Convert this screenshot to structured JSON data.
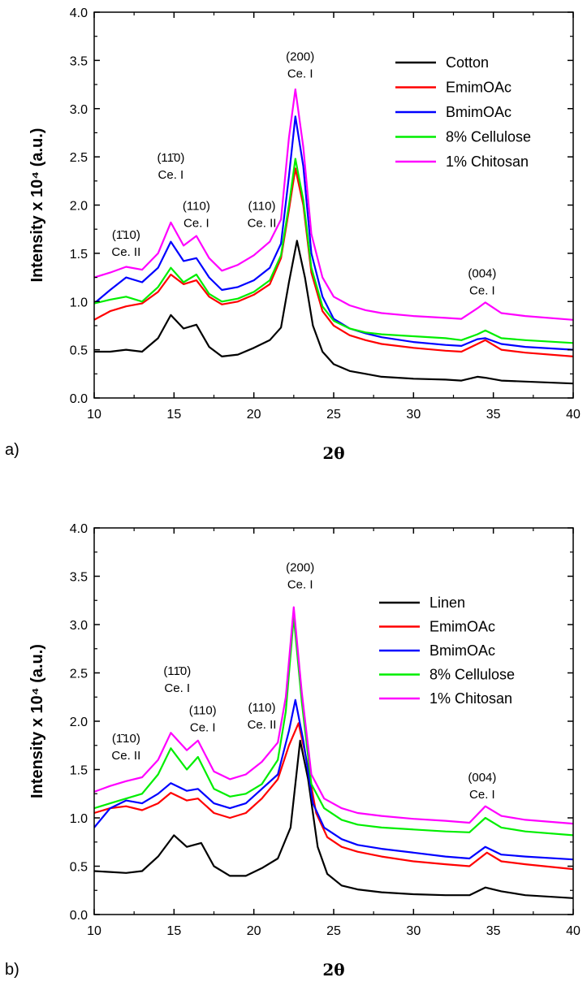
{
  "chart_data": [
    {
      "type": "line",
      "panel_label": "a)",
      "xlabel": "2θ",
      "ylabel": "Intensity x 10⁴ (a.u.)",
      "xlim": [
        10,
        40
      ],
      "ylim": [
        0.0,
        4.0
      ],
      "xticks": [
        "10",
        "15",
        "20",
        "25",
        "30",
        "35",
        "40"
      ],
      "yticks": [
        "0.0",
        "0.5",
        "1.0",
        "1.5",
        "2.0",
        "2.5",
        "3.0",
        "3.5",
        "4.0"
      ],
      "legend_position": "top-right",
      "series": [
        {
          "name": "Cotton",
          "color": "#000000",
          "x": [
            10,
            11,
            12,
            13,
            14,
            14.8,
            15.6,
            16.4,
            17.2,
            18,
            19,
            20,
            21,
            21.7,
            22.2,
            22.7,
            23.2,
            23.7,
            24.3,
            25,
            26,
            27,
            28,
            30,
            32,
            33,
            34,
            34.5,
            35.5,
            37,
            40
          ],
          "y": [
            0.48,
            0.48,
            0.5,
            0.48,
            0.62,
            0.86,
            0.72,
            0.76,
            0.53,
            0.43,
            0.45,
            0.52,
            0.6,
            0.73,
            1.2,
            1.63,
            1.25,
            0.75,
            0.48,
            0.35,
            0.28,
            0.25,
            0.22,
            0.2,
            0.19,
            0.18,
            0.22,
            0.21,
            0.18,
            0.17,
            0.15
          ]
        },
        {
          "name": "EmimOAc",
          "color": "#ff0000",
          "x": [
            10,
            11,
            12,
            13,
            14,
            14.8,
            15.6,
            16.4,
            17.2,
            18,
            19,
            20,
            21,
            21.7,
            22.2,
            22.6,
            23.1,
            23.6,
            24.3,
            25,
            26,
            27,
            28,
            30,
            32,
            33,
            34,
            34.5,
            35.5,
            37,
            40
          ],
          "y": [
            0.81,
            0.9,
            0.95,
            0.98,
            1.1,
            1.28,
            1.18,
            1.22,
            1.05,
            0.97,
            1.0,
            1.07,
            1.18,
            1.45,
            1.95,
            2.38,
            2.0,
            1.3,
            0.9,
            0.75,
            0.65,
            0.6,
            0.56,
            0.52,
            0.49,
            0.48,
            0.56,
            0.6,
            0.5,
            0.47,
            0.43
          ]
        },
        {
          "name": "BmimOAc",
          "color": "#0000ff",
          "x": [
            10,
            11,
            12,
            13,
            14,
            14.8,
            15.6,
            16.4,
            17.2,
            18,
            19,
            20,
            21,
            21.7,
            22.2,
            22.6,
            23.1,
            23.6,
            24.3,
            25,
            26,
            27,
            28,
            30,
            32,
            33,
            34,
            34.5,
            35.5,
            37,
            40
          ],
          "y": [
            0.98,
            1.12,
            1.25,
            1.2,
            1.35,
            1.62,
            1.42,
            1.45,
            1.25,
            1.12,
            1.15,
            1.22,
            1.35,
            1.6,
            2.3,
            2.92,
            2.4,
            1.5,
            1.05,
            0.82,
            0.72,
            0.67,
            0.63,
            0.58,
            0.55,
            0.54,
            0.61,
            0.62,
            0.56,
            0.53,
            0.5
          ]
        },
        {
          "name": "8% Cellulose",
          "color": "#00ee00",
          "x": [
            10,
            11,
            12,
            13,
            14,
            14.8,
            15.6,
            16.4,
            17.2,
            18,
            19,
            20,
            21,
            21.7,
            22.2,
            22.6,
            23.1,
            23.6,
            24.3,
            25,
            26,
            27,
            28,
            30,
            32,
            33,
            34,
            34.5,
            35.5,
            37,
            40
          ],
          "y": [
            0.98,
            1.02,
            1.05,
            1.0,
            1.15,
            1.35,
            1.2,
            1.28,
            1.08,
            1.0,
            1.03,
            1.1,
            1.22,
            1.48,
            2.0,
            2.48,
            2.05,
            1.35,
            0.95,
            0.8,
            0.72,
            0.68,
            0.66,
            0.64,
            0.62,
            0.6,
            0.66,
            0.7,
            0.62,
            0.6,
            0.57
          ]
        },
        {
          "name": "1% Chitosan",
          "color": "#ff00ff",
          "x": [
            10,
            11,
            12,
            13,
            14,
            14.8,
            15.6,
            16.4,
            17.2,
            18,
            19,
            20,
            21,
            21.7,
            22.2,
            22.6,
            23.1,
            23.6,
            24.3,
            25,
            26,
            27,
            28,
            30,
            32,
            33,
            34,
            34.5,
            35.5,
            37,
            40
          ],
          "y": [
            1.25,
            1.3,
            1.36,
            1.33,
            1.5,
            1.82,
            1.58,
            1.68,
            1.45,
            1.32,
            1.38,
            1.48,
            1.62,
            1.85,
            2.7,
            3.2,
            2.6,
            1.7,
            1.25,
            1.05,
            0.96,
            0.91,
            0.88,
            0.85,
            0.83,
            0.82,
            0.93,
            0.99,
            0.88,
            0.85,
            0.81
          ]
        }
      ],
      "annotations": [
        {
          "label": "(1̄10)",
          "phase": "Ce. II",
          "x": 12.0,
          "y": 1.65
        },
        {
          "label": "(11̄0)",
          "phase": "Ce. I",
          "x": 14.8,
          "y": 2.45
        },
        {
          "label": "(110)",
          "phase": "Ce. I",
          "x": 16.4,
          "y": 1.95
        },
        {
          "label": "(110)",
          "phase": "Ce. II",
          "x": 20.5,
          "y": 1.95
        },
        {
          "label": "(200)",
          "phase": "Ce. I",
          "x": 22.9,
          "y": 3.5
        },
        {
          "label": "(004)",
          "phase": "Ce. I",
          "x": 34.3,
          "y": 1.25
        }
      ]
    },
    {
      "type": "line",
      "panel_label": "b)",
      "xlabel": "2θ",
      "ylabel": "Intensity x 10⁴ (a.u.)",
      "xlim": [
        10,
        40
      ],
      "ylim": [
        0.0,
        4.0
      ],
      "xticks": [
        "10",
        "15",
        "20",
        "25",
        "30",
        "35",
        "40"
      ],
      "yticks": [
        "0.0",
        "0.5",
        "1.0",
        "1.5",
        "2.0",
        "2.5",
        "3.0",
        "3.5",
        "4.0"
      ],
      "legend_position": "top-right",
      "series": [
        {
          "name": "Linen",
          "color": "#000000",
          "x": [
            10,
            11,
            12,
            13,
            14,
            15,
            15.8,
            16.7,
            17.5,
            18.5,
            19.5,
            20.5,
            21.5,
            22.3,
            22.9,
            23.4,
            24,
            24.6,
            25.5,
            26.5,
            28,
            30,
            32,
            33.5,
            34.5,
            35.5,
            37,
            40
          ],
          "y": [
            0.45,
            0.44,
            0.43,
            0.45,
            0.6,
            0.82,
            0.7,
            0.74,
            0.5,
            0.4,
            0.4,
            0.48,
            0.58,
            0.9,
            1.8,
            1.4,
            0.7,
            0.42,
            0.3,
            0.26,
            0.23,
            0.21,
            0.2,
            0.2,
            0.28,
            0.24,
            0.2,
            0.17
          ]
        },
        {
          "name": "EmimOAc",
          "color": "#ff0000",
          "x": [
            10,
            11,
            12,
            13,
            14,
            14.8,
            15.8,
            16.5,
            17.5,
            18.5,
            19.5,
            20.5,
            21.5,
            22.2,
            22.8,
            23.3,
            23.9,
            24.6,
            25.5,
            26.5,
            28,
            30,
            32,
            33.5,
            34.6,
            35.5,
            37,
            40
          ],
          "y": [
            1.05,
            1.1,
            1.12,
            1.08,
            1.15,
            1.26,
            1.18,
            1.2,
            1.05,
            1.0,
            1.05,
            1.2,
            1.4,
            1.75,
            1.98,
            1.6,
            1.05,
            0.8,
            0.7,
            0.65,
            0.6,
            0.55,
            0.52,
            0.5,
            0.64,
            0.55,
            0.52,
            0.47
          ]
        },
        {
          "name": "BmimOAc",
          "color": "#0000ff",
          "x": [
            10,
            11,
            12,
            13,
            14,
            14.8,
            15.8,
            16.5,
            17.5,
            18.5,
            19.5,
            20.5,
            21.5,
            22.2,
            22.6,
            23.1,
            23.7,
            24.4,
            25.5,
            26.5,
            28,
            30,
            32,
            33.5,
            34.5,
            35.5,
            37,
            40
          ],
          "y": [
            0.9,
            1.1,
            1.18,
            1.15,
            1.25,
            1.36,
            1.28,
            1.3,
            1.15,
            1.1,
            1.15,
            1.3,
            1.45,
            1.9,
            2.22,
            1.8,
            1.15,
            0.9,
            0.78,
            0.72,
            0.68,
            0.64,
            0.6,
            0.58,
            0.7,
            0.62,
            0.6,
            0.57
          ]
        },
        {
          "name": "8% Cellulose",
          "color": "#00ee00",
          "x": [
            10,
            11,
            12,
            13,
            14,
            14.8,
            15.8,
            16.5,
            17.5,
            18.5,
            19.5,
            20.5,
            21.5,
            22.0,
            22.5,
            23.0,
            23.6,
            24.4,
            25.5,
            26.5,
            28,
            30,
            32,
            33.5,
            34.5,
            35.5,
            37,
            40
          ],
          "y": [
            1.1,
            1.15,
            1.2,
            1.25,
            1.45,
            1.72,
            1.5,
            1.63,
            1.3,
            1.22,
            1.25,
            1.35,
            1.6,
            2.1,
            3.08,
            2.2,
            1.35,
            1.1,
            0.98,
            0.93,
            0.9,
            0.88,
            0.86,
            0.85,
            1.0,
            0.9,
            0.86,
            0.82
          ]
        },
        {
          "name": "1% Chitosan",
          "color": "#ff00ff",
          "x": [
            10,
            11,
            12,
            13,
            14,
            14.8,
            15.8,
            16.5,
            17.5,
            18.5,
            19.5,
            20.5,
            21.5,
            22.0,
            22.5,
            23.0,
            23.6,
            24.4,
            25.5,
            26.5,
            28,
            30,
            32,
            33.5,
            34.5,
            35.5,
            37,
            40
          ],
          "y": [
            1.27,
            1.33,
            1.38,
            1.42,
            1.6,
            1.88,
            1.7,
            1.8,
            1.48,
            1.4,
            1.45,
            1.58,
            1.78,
            2.25,
            3.18,
            2.3,
            1.45,
            1.2,
            1.1,
            1.05,
            1.02,
            0.99,
            0.97,
            0.95,
            1.12,
            1.02,
            0.98,
            0.94
          ]
        }
      ],
      "annotations": [
        {
          "label": "(1̄10)",
          "phase": "Ce. II",
          "x": 12.0,
          "y": 1.78
        },
        {
          "label": "(11̄0)",
          "phase": "Ce. I",
          "x": 15.2,
          "y": 2.48
        },
        {
          "label": "(110)",
          "phase": "Ce. I",
          "x": 16.8,
          "y": 2.07
        },
        {
          "label": "(110)",
          "phase": "Ce. II",
          "x": 20.5,
          "y": 2.1
        },
        {
          "label": "(200)",
          "phase": "Ce. I",
          "x": 22.9,
          "y": 3.55
        },
        {
          "label": "(004)",
          "phase": "Ce. I",
          "x": 34.3,
          "y": 1.38
        }
      ]
    }
  ]
}
